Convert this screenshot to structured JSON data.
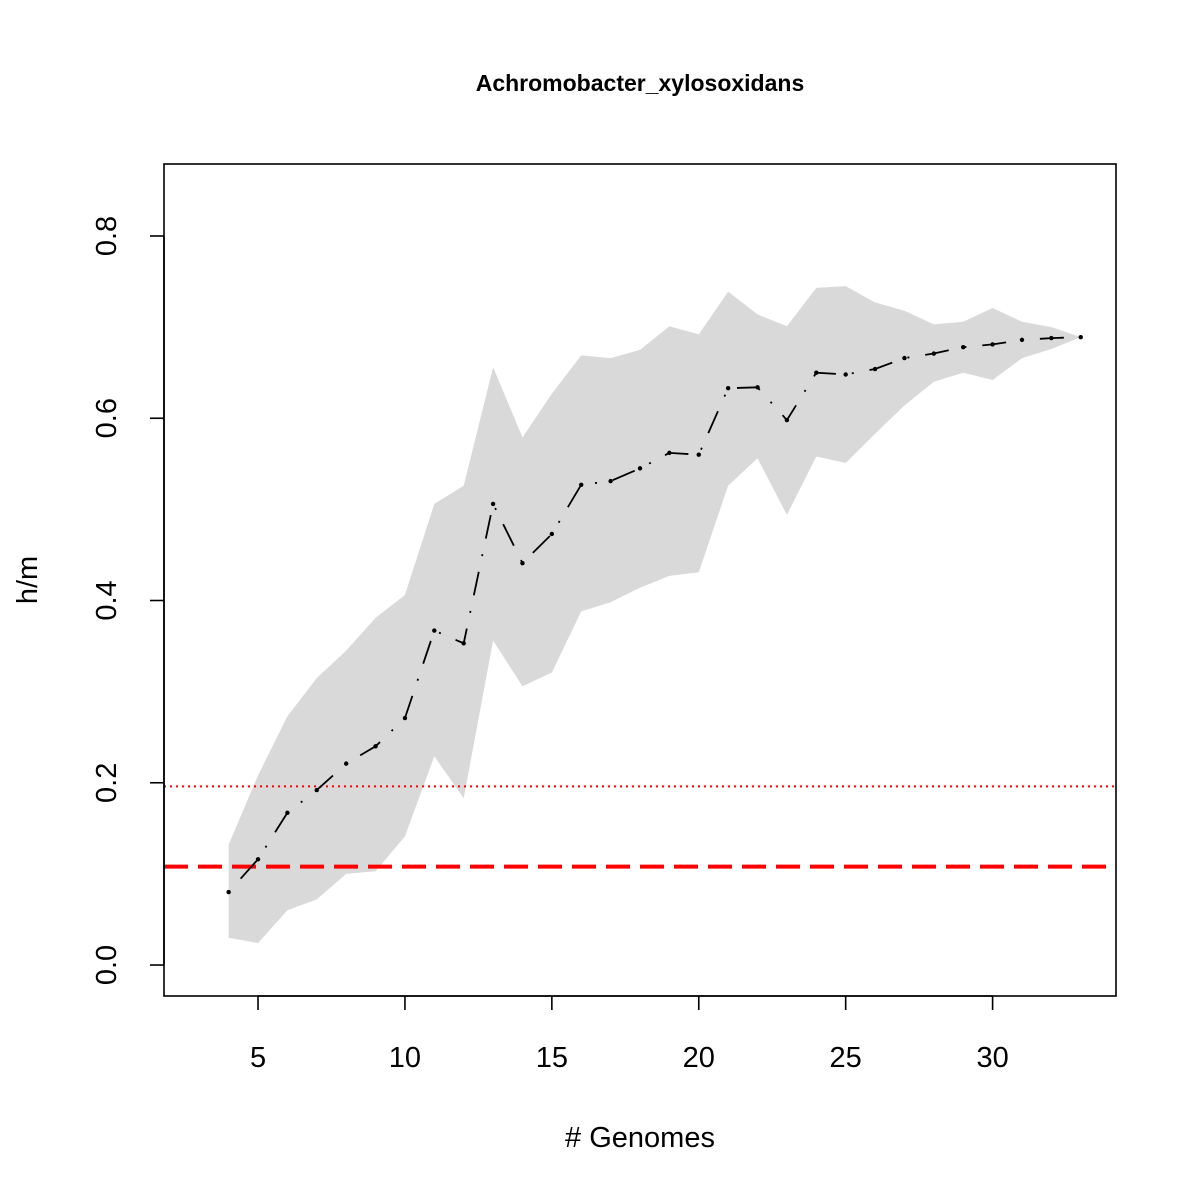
{
  "chart_data": {
    "type": "line",
    "title": "Achromobacter_xylosoxidans",
    "xlabel": "# Genomes",
    "ylabel": "h/m",
    "xlim": [
      1.8,
      34.2
    ],
    "ylim": [
      -0.034,
      0.879
    ],
    "xticks": [
      5,
      10,
      15,
      20,
      25,
      30
    ],
    "yticks": [
      0.0,
      0.2,
      0.4,
      0.6,
      0.8
    ],
    "xtick_labels": [
      "5",
      "10",
      "15",
      "20",
      "25",
      "30"
    ],
    "ytick_labels": [
      "0.0",
      "0.2",
      "0.4",
      "0.6",
      "0.8"
    ],
    "grid": false,
    "series": [
      {
        "x": [
          4,
          5,
          6,
          7,
          8,
          9,
          10,
          11,
          12,
          13,
          14,
          15,
          16,
          17,
          18,
          19,
          20,
          21,
          22,
          23,
          24,
          25,
          26,
          27,
          28,
          29,
          30,
          31,
          32,
          33
        ],
        "y": [
          0.08,
          0.116,
          0.167,
          0.192,
          0.221,
          0.24,
          0.271,
          0.367,
          0.353,
          0.506,
          0.441,
          0.473,
          0.527,
          0.531,
          0.545,
          0.562,
          0.56,
          0.633,
          0.634,
          0.598,
          0.65,
          0.648,
          0.654,
          0.666,
          0.671,
          0.678,
          0.681,
          0.686,
          0.688,
          0.689
        ],
        "color": "#000000",
        "line_style": "dotdash"
      }
    ],
    "band": {
      "x": [
        4,
        5,
        6,
        7,
        8,
        9,
        10,
        11,
        12,
        13,
        14,
        15,
        16,
        17,
        18,
        19,
        20,
        21,
        22,
        23,
        24,
        25,
        26,
        27,
        28,
        29,
        30,
        31,
        32,
        33
      ],
      "upper": [
        0.132,
        0.208,
        0.273,
        0.315,
        0.345,
        0.381,
        0.406,
        0.506,
        0.526,
        0.656,
        0.579,
        0.627,
        0.669,
        0.666,
        0.675,
        0.701,
        0.692,
        0.739,
        0.714,
        0.701,
        0.743,
        0.745,
        0.727,
        0.718,
        0.703,
        0.706,
        0.721,
        0.706,
        0.7,
        0.689
      ],
      "lower": [
        0.03,
        0.024,
        0.06,
        0.072,
        0.1,
        0.103,
        0.141,
        0.229,
        0.183,
        0.356,
        0.306,
        0.321,
        0.388,
        0.398,
        0.414,
        0.427,
        0.431,
        0.526,
        0.556,
        0.494,
        0.558,
        0.551,
        0.583,
        0.614,
        0.64,
        0.65,
        0.642,
        0.666,
        0.676,
        0.689
      ],
      "color": "#d9d9d9"
    },
    "hlines": [
      {
        "y": 0.196,
        "color": "#ff0000",
        "style": "dotted"
      },
      {
        "y": 0.108,
        "color": "#ff0000",
        "style": "dashed"
      }
    ]
  }
}
